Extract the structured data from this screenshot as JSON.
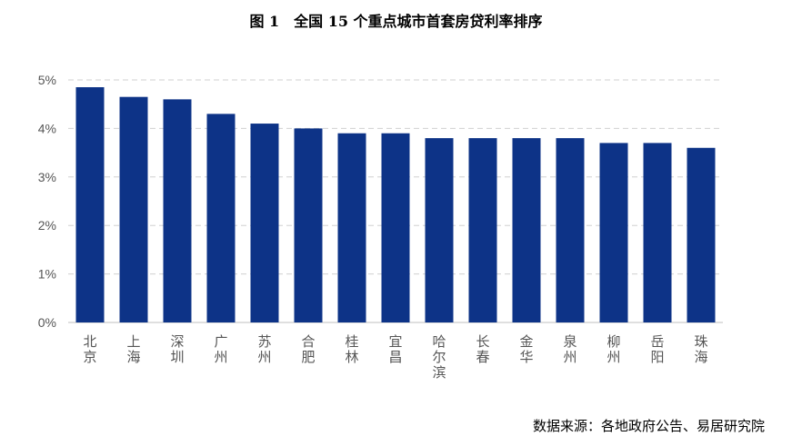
{
  "chart_data": {
    "type": "bar",
    "title": "图 1　全国 15 个重点城市首套房贷利率排序",
    "categories": [
      "北京",
      "上海",
      "深圳",
      "广州",
      "苏州",
      "合肥",
      "桂林",
      "宜昌",
      "哈尔滨",
      "长春",
      "金华",
      "泉州",
      "柳州",
      "岳阳",
      "珠海"
    ],
    "values": [
      4.85,
      4.65,
      4.6,
      4.3,
      4.1,
      4.0,
      3.9,
      3.9,
      3.8,
      3.8,
      3.8,
      3.8,
      3.7,
      3.7,
      3.6
    ],
    "ylim": [
      0,
      5
    ],
    "yticks": [
      "0%",
      "1%",
      "2%",
      "3%",
      "4%",
      "5%"
    ],
    "grid": true,
    "bar_color": "#0D3387",
    "source": "数据来源：各地政府公告、易居研究院"
  }
}
